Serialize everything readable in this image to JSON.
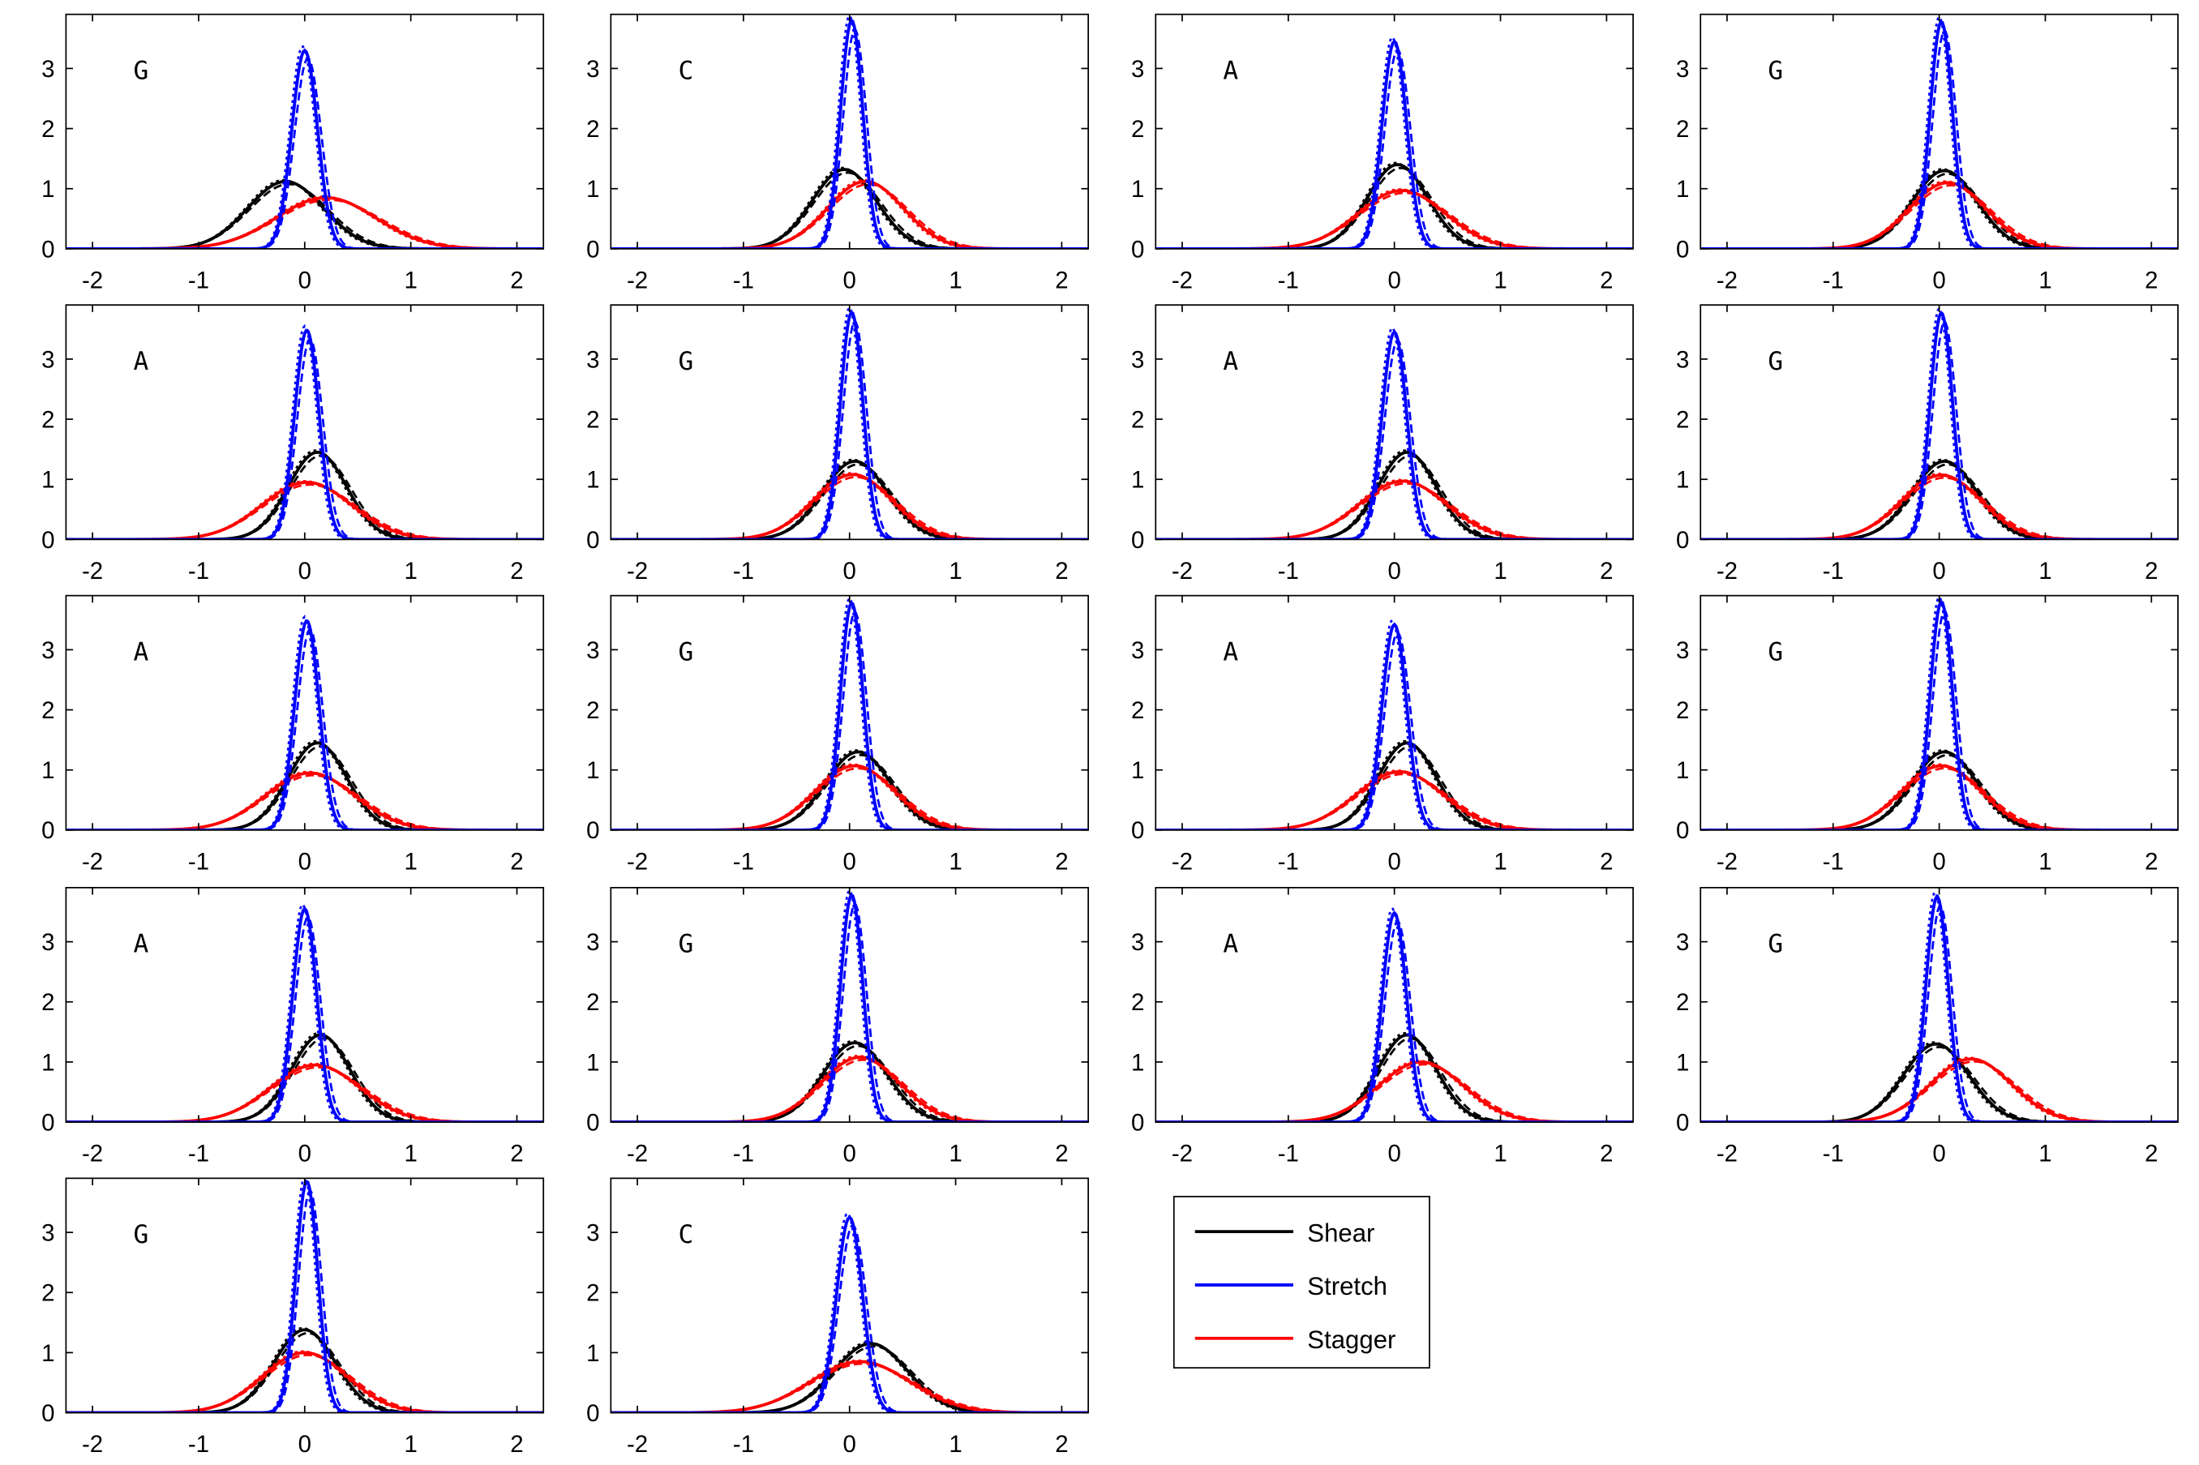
{
  "chart_data": {
    "type": "line",
    "layout": "grid of 18 small-multiple density plots, 4 columns x 5 rows",
    "xlim": [
      -2.25,
      2.25
    ],
    "ylim": [
      0,
      3.9
    ],
    "x_ticks": [
      -2,
      -1,
      0,
      1,
      2
    ],
    "y_ticks": [
      0,
      1,
      2,
      3
    ],
    "grid": false,
    "legend": {
      "placement": "row 5, column 3",
      "entries": [
        {
          "label": "Shear",
          "color": "#000000"
        },
        {
          "label": "Stretch",
          "color": "#0000ff"
        },
        {
          "label": "Stagger",
          "color": "#ff0000"
        }
      ]
    },
    "series_colors": {
      "Shear": "#000000",
      "Stretch": "#0000ff",
      "Stagger": "#ff0000"
    },
    "curve_model": "gaussian density; values give [mean, peak height]; dashed variants drawn slightly offset",
    "panels": [
      {
        "label": "G",
        "shear": [
          -0.18,
          1.12
        ],
        "stretch": [
          0.0,
          3.3
        ],
        "stagger": [
          0.2,
          0.85
        ]
      },
      {
        "label": "C",
        "shear": [
          -0.05,
          1.32
        ],
        "stretch": [
          0.02,
          3.8
        ],
        "stagger": [
          0.15,
          1.12
        ]
      },
      {
        "label": "A",
        "shear": [
          0.03,
          1.4
        ],
        "stretch": [
          0.0,
          3.45
        ],
        "stagger": [
          0.07,
          0.97
        ]
      },
      {
        "label": "G",
        "shear": [
          0.05,
          1.3
        ],
        "stretch": [
          0.02,
          3.78
        ],
        "stagger": [
          0.08,
          1.1
        ]
      },
      {
        "label": "A",
        "shear": [
          0.12,
          1.45
        ],
        "stretch": [
          0.02,
          3.48
        ],
        "stagger": [
          0.02,
          0.95
        ]
      },
      {
        "label": "G",
        "shear": [
          0.05,
          1.3
        ],
        "stretch": [
          0.02,
          3.78
        ],
        "stagger": [
          0.03,
          1.08
        ]
      },
      {
        "label": "A",
        "shear": [
          0.12,
          1.45
        ],
        "stretch": [
          0.0,
          3.45
        ],
        "stagger": [
          0.08,
          0.97
        ]
      },
      {
        "label": "G",
        "shear": [
          0.05,
          1.3
        ],
        "stretch": [
          0.02,
          3.77
        ],
        "stagger": [
          0.02,
          1.07
        ]
      },
      {
        "label": "A",
        "shear": [
          0.12,
          1.45
        ],
        "stretch": [
          0.02,
          3.48
        ],
        "stagger": [
          0.05,
          0.95
        ]
      },
      {
        "label": "G",
        "shear": [
          0.08,
          1.3
        ],
        "stretch": [
          0.02,
          3.78
        ],
        "stagger": [
          0.05,
          1.07
        ]
      },
      {
        "label": "A",
        "shear": [
          0.12,
          1.45
        ],
        "stretch": [
          0.0,
          3.42
        ],
        "stagger": [
          0.05,
          0.97
        ]
      },
      {
        "label": "G",
        "shear": [
          0.05,
          1.3
        ],
        "stretch": [
          0.02,
          3.8
        ],
        "stagger": [
          0.02,
          1.07
        ]
      },
      {
        "label": "A",
        "shear": [
          0.15,
          1.45
        ],
        "stretch": [
          0.0,
          3.55
        ],
        "stagger": [
          0.1,
          0.95
        ]
      },
      {
        "label": "G",
        "shear": [
          0.05,
          1.32
        ],
        "stretch": [
          0.02,
          3.78
        ],
        "stagger": [
          0.1,
          1.08
        ]
      },
      {
        "label": "A",
        "shear": [
          0.12,
          1.45
        ],
        "stretch": [
          0.0,
          3.48
        ],
        "stagger": [
          0.25,
          1.0
        ]
      },
      {
        "label": "G",
        "shear": [
          -0.03,
          1.3
        ],
        "stretch": [
          -0.02,
          3.75
        ],
        "stagger": [
          0.3,
          1.05
        ]
      },
      {
        "label": "G",
        "shear": [
          0.0,
          1.38
        ],
        "stretch": [
          0.02,
          3.85
        ],
        "stagger": [
          0.0,
          1.0
        ]
      },
      {
        "label": "C",
        "shear": [
          0.2,
          1.15
        ],
        "stretch": [
          0.0,
          3.25
        ],
        "stagger": [
          0.1,
          0.85
        ]
      }
    ]
  }
}
